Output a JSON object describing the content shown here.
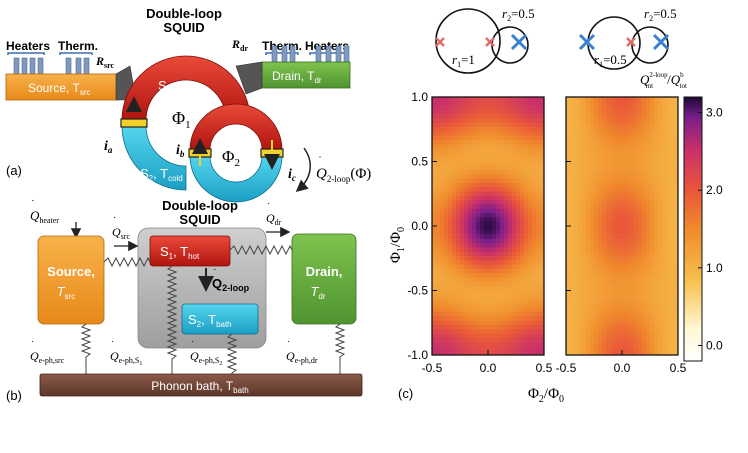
{
  "panel_a": {
    "label": "(a)",
    "squid_title_1": "Double-loop",
    "squid_title_2": "SQUID",
    "heaters_left": "Heaters",
    "therm_left": "Therm.",
    "therm_right": "Therm.",
    "heaters_right": "Heaters",
    "source_label": "Source, T",
    "source_sub": "src",
    "drain_label": "Drain, T",
    "drain_sub": "dr",
    "r_src": "R",
    "r_src_sub": "src",
    "r_dr": "R",
    "r_dr_sub": "dr",
    "s1_label": "S",
    "s1_sub": "1",
    "s1_temp": ", T",
    "s1_temp_sub": "hot",
    "s2_label": "S",
    "s2_sub": "2",
    "s2_temp": ", T",
    "s2_temp_sub": "cold",
    "phi1": "Φ",
    "phi1_sub": "1",
    "phi2": "Φ",
    "phi2_sub": "2",
    "i_a": "i",
    "i_a_sub": "a",
    "i_b": "i",
    "i_b_sub": "b",
    "i_c": "i",
    "i_c_sub": "c",
    "q_2loop": "Q",
    "q_2loop_sub": "2-loop",
    "q_2loop_arg": "(Φ)"
  },
  "panel_b": {
    "label": "(b)",
    "squid_title_1": "Double-loop",
    "squid_title_2": "SQUID",
    "q_heater": "Q",
    "q_heater_sub": "heater",
    "q_src": "Q",
    "q_src_sub": "src",
    "q_dr": "Q",
    "q_dr_sub": "dr",
    "source_1": "Source,",
    "source_2": "T",
    "source_2_sub": "src",
    "drain_1": "Drain,",
    "drain_2": "T",
    "drain_2_sub": "dr",
    "s1": "S",
    "s1_sub": "1",
    "s1_t": ", T",
    "s1_t_sub": "hot",
    "s2": "S",
    "s2_sub": "2",
    "s2_t": ", T",
    "s2_t_sub": "bath",
    "q_2loop": "Q",
    "q_2loop_sub": "2-loop",
    "q_eph_src": "Q",
    "q_eph_src_sub": "e-ph,src",
    "q_eph_s1": "Q",
    "q_eph_s1_sub": "e-ph,S",
    "q_eph_s1_subsub": "1",
    "q_eph_s2": "Q",
    "q_eph_s2_sub": "e-ph,S",
    "q_eph_s2_subsub": "2",
    "q_eph_dr": "Q",
    "q_eph_dr_sub": "e-ph,dr",
    "bath": "Phonon bath, T",
    "bath_sub": "bath"
  },
  "panel_c": {
    "label": "(c)",
    "inset_left_r2": "r",
    "inset_left_r2_sub": "2",
    "inset_left_r2_val": "=0.5",
    "inset_left_r1": "r",
    "inset_left_r1_sub": "1",
    "inset_left_r1_val": "=1",
    "inset_right_r2": "r",
    "inset_right_r2_sub": "2",
    "inset_right_r2_val": "=0.5",
    "inset_right_r1": "r",
    "inset_right_r1_sub": "1",
    "inset_right_r1_val": "=0.5",
    "colorbar_label_num": "Q",
    "colorbar_label_num_sup": "2-loop",
    "colorbar_label_num_sub": "int",
    "colorbar_label_den": "Q",
    "colorbar_label_den_sup": "b",
    "colorbar_label_den_sub": "tot",
    "colorbar_label_slash": "/",
    "colors": {
      "cross_red": "#e06a6a",
      "cross_blue": "#3b7fd1"
    }
  },
  "chart_data": {
    "type": "heatmap",
    "xlabel": "Φ2/Φ0",
    "ylabel": "Φ1/Φ0",
    "xlabel_main": "Φ",
    "xlabel_sub": "2",
    "xlabel_den": "/Φ",
    "xlabel_den_sub": "0",
    "ylabel_main": "Φ",
    "ylabel_sub": "1",
    "ylabel_den": "/Φ",
    "ylabel_den_sub": "0",
    "xlim": [
      -0.5,
      0.5
    ],
    "ylim": [
      -1.0,
      1.0
    ],
    "xticks": [
      "-0.5",
      "0.0",
      "0.5"
    ],
    "yticks": [
      "1.0",
      "0.5",
      "0.0",
      "-0.5",
      "-1.0"
    ],
    "ytick_values": [
      1.0,
      0.5,
      0.0,
      -0.5,
      -1.0
    ],
    "xtick_values": [
      -0.5,
      0.0,
      0.5
    ],
    "panels": [
      {
        "name": "r1=1, r2=0.5",
        "min": 0.3,
        "max": 3.0,
        "description_pattern": "dark maxima near (0,0) and (0,±1); light minima near (±0.5,±0.5)"
      },
      {
        "name": "r1=0.5, r2=0.5",
        "min": 0.5,
        "max": 2.0,
        "description_pattern": "weaker modulation, orange dominated"
      }
    ],
    "colorbar": {
      "ticks": [
        "3.0",
        "2.0",
        "1.0",
        "0.0"
      ],
      "tick_values": [
        3.0,
        2.0,
        1.0,
        0.0
      ],
      "range": [
        -0.2,
        3.2
      ]
    }
  }
}
